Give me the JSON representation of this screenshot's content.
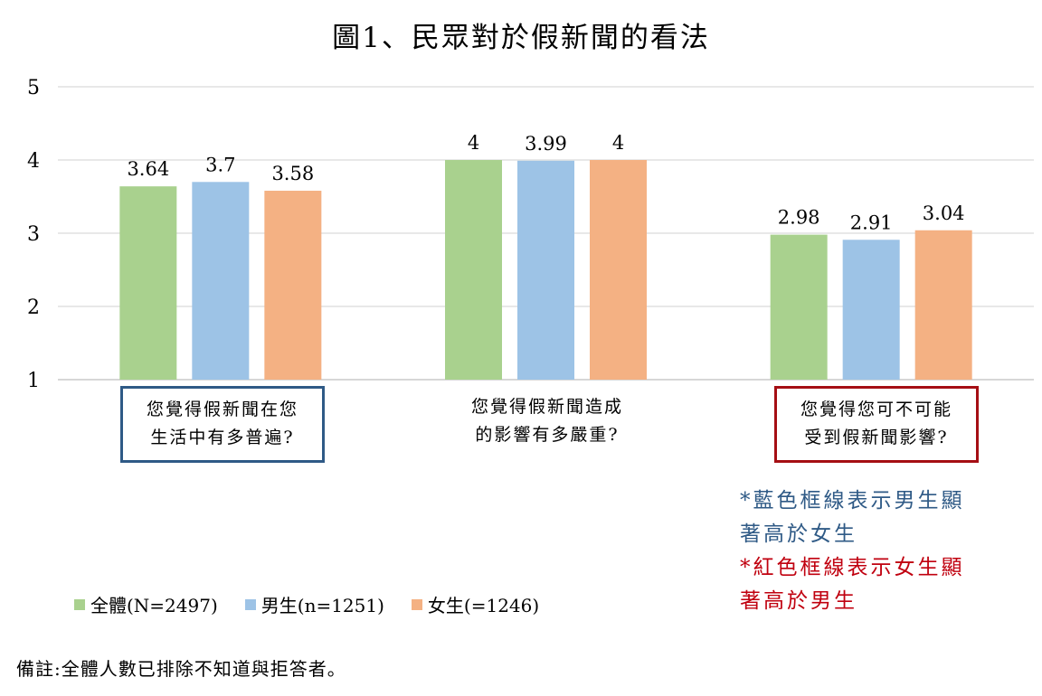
{
  "chart_data": {
    "type": "bar",
    "title": "圖1、民眾對於假新聞的看法",
    "categories": [
      {
        "lines": [
          "您覺得假新聞在您",
          "生活中有多普遍?"
        ],
        "highlight": "blue"
      },
      {
        "lines": [
          "您覺得假新聞造成",
          "的影響有多嚴重?"
        ],
        "highlight": "none"
      },
      {
        "lines": [
          "您覺得您可不可能",
          "受到假新聞影響?"
        ],
        "highlight": "red"
      }
    ],
    "series": [
      {
        "name": "全體(N=2497)",
        "color": "#a9d18e",
        "values": [
          3.64,
          4,
          2.98
        ],
        "labels": [
          "3.64",
          "4",
          "2.98"
        ]
      },
      {
        "name": "男生(n=1251)",
        "color": "#9dc3e6",
        "values": [
          3.7,
          3.99,
          2.91
        ],
        "labels": [
          "3.7",
          "3.99",
          "2.91"
        ]
      },
      {
        "name": "女生(=1246)",
        "color": "#f4b183",
        "values": [
          3.58,
          4,
          3.04
        ],
        "labels": [
          "3.58",
          "4",
          "3.04"
        ]
      }
    ],
    "y_ticks": [
      "1",
      "2",
      "3",
      "4",
      "5"
    ],
    "ylim": [
      1,
      5
    ],
    "grid": true,
    "legend_position": "bottom-left"
  },
  "notes": {
    "blue_line1": "*藍色框線表示男生顯",
    "blue_line2": "著高於女生",
    "red_line1": "*紅色框線表示女生顯",
    "red_line2": "著高於男生",
    "blue_color": "#2f5a86",
    "red_color": "#c0000f"
  },
  "footnote": "備註:全體人數已排除不知道與拒答者。"
}
